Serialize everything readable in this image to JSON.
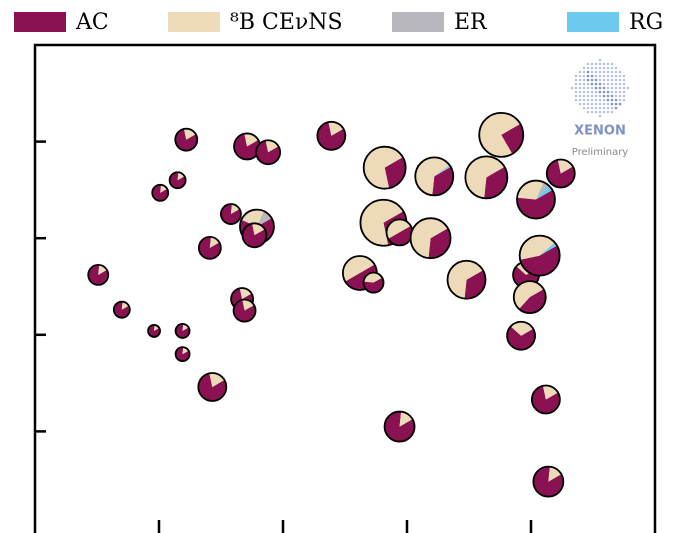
{
  "chart_data": {
    "type": "pie-scatter",
    "series": [
      {
        "name": "AC",
        "color": "#8a1252"
      },
      {
        "name": "⁸B CEνNS",
        "color": "#ecdab8"
      },
      {
        "name": "ER",
        "color": "#b9b7be"
      },
      {
        "name": "RG",
        "color": "#6ccaf0"
      }
    ],
    "logo_title": "XENON",
    "logo_subtitle": "Preliminary",
    "xlim": [
      0,
      5
    ],
    "ylim": [
      0,
      5
    ],
    "xticks": [
      1,
      2,
      3,
      4
    ],
    "yticks": [
      1,
      2,
      3,
      4
    ],
    "points": [
      {
        "x": 1.22,
        "y": 4.02,
        "size": 11,
        "fractions": [
          0.8,
          0.2,
          0,
          0
        ]
      },
      {
        "x": 1.71,
        "y": 3.95,
        "size": 13,
        "fractions": [
          0.8,
          0.2,
          0,
          0
        ]
      },
      {
        "x": 1.88,
        "y": 3.89,
        "size": 12,
        "fractions": [
          0.8,
          0.2,
          0,
          0
        ]
      },
      {
        "x": 2.39,
        "y": 4.06,
        "size": 14,
        "fractions": [
          0.8,
          0.2,
          0,
          0
        ]
      },
      {
        "x": 2.82,
        "y": 3.73,
        "size": 21,
        "fractions": [
          0.3,
          0.7,
          0,
          0
        ]
      },
      {
        "x": 3.22,
        "y": 3.64,
        "size": 19,
        "fractions": [
          0.35,
          0.63,
          0.01,
          0.01
        ]
      },
      {
        "x": 3.64,
        "y": 3.63,
        "size": 21,
        "fractions": [
          0.35,
          0.65,
          0,
          0
        ]
      },
      {
        "x": 3.76,
        "y": 4.07,
        "size": 22,
        "fractions": [
          0.25,
          0.75,
          0,
          0
        ]
      },
      {
        "x": 4.24,
        "y": 3.67,
        "size": 14,
        "fractions": [
          0.8,
          0.2,
          0,
          0
        ]
      },
      {
        "x": 4.04,
        "y": 3.4,
        "size": 19,
        "fractions": [
          0.6,
          0.3,
          0.05,
          0.05
        ]
      },
      {
        "x": 1.01,
        "y": 3.47,
        "size": 8,
        "fractions": [
          0.85,
          0.15,
          0,
          0
        ]
      },
      {
        "x": 1.15,
        "y": 3.6,
        "size": 8,
        "fractions": [
          0.85,
          0.15,
          0,
          0
        ]
      },
      {
        "x": 1.58,
        "y": 3.25,
        "size": 10,
        "fractions": [
          0.85,
          0.15,
          0,
          0
        ]
      },
      {
        "x": 1.79,
        "y": 3.12,
        "size": 17,
        "fractions": [
          0.65,
          0.25,
          0.1,
          0
        ]
      },
      {
        "x": 1.77,
        "y": 3.03,
        "size": 12,
        "fractions": [
          0.8,
          0.2,
          0,
          0
        ]
      },
      {
        "x": 2.81,
        "y": 3.16,
        "size": 23,
        "fractions": [
          0.3,
          0.7,
          0,
          0
        ]
      },
      {
        "x": 2.94,
        "y": 3.06,
        "size": 13,
        "fractions": [
          0.5,
          0.5,
          0,
          0
        ]
      },
      {
        "x": 3.19,
        "y": 3.0,
        "size": 20,
        "fractions": [
          0.35,
          0.65,
          0,
          0
        ]
      },
      {
        "x": 1.41,
        "y": 2.9,
        "size": 11,
        "fractions": [
          0.85,
          0.15,
          0,
          0
        ]
      },
      {
        "x": 0.51,
        "y": 2.62,
        "size": 10,
        "fractions": [
          0.85,
          0.15,
          0,
          0
        ]
      },
      {
        "x": 2.62,
        "y": 2.64,
        "size": 17,
        "fractions": [
          0.5,
          0.5,
          0,
          0
        ]
      },
      {
        "x": 2.73,
        "y": 2.54,
        "size": 10,
        "fractions": [
          0.6,
          0.4,
          0,
          0
        ]
      },
      {
        "x": 3.48,
        "y": 2.57,
        "size": 19,
        "fractions": [
          0.35,
          0.65,
          0,
          0
        ]
      },
      {
        "x": 3.96,
        "y": 2.62,
        "size": 13,
        "fractions": [
          0.7,
          0.3,
          0,
          0
        ]
      },
      {
        "x": 4.07,
        "y": 2.82,
        "size": 20,
        "fractions": [
          0.55,
          0.42,
          0,
          0.03
        ]
      },
      {
        "x": 3.99,
        "y": 2.39,
        "size": 16,
        "fractions": [
          0.45,
          0.55,
          0,
          0
        ]
      },
      {
        "x": 1.67,
        "y": 2.37,
        "size": 11,
        "fractions": [
          0.8,
          0.2,
          0,
          0
        ]
      },
      {
        "x": 1.69,
        "y": 2.25,
        "size": 11,
        "fractions": [
          0.8,
          0.2,
          0,
          0
        ]
      },
      {
        "x": 0.7,
        "y": 2.26,
        "size": 8,
        "fractions": [
          0.85,
          0.15,
          0,
          0
        ]
      },
      {
        "x": 0.96,
        "y": 2.04,
        "size": 6,
        "fractions": [
          0.85,
          0.15,
          0,
          0
        ]
      },
      {
        "x": 1.19,
        "y": 2.04,
        "size": 7,
        "fractions": [
          0.85,
          0.15,
          0,
          0
        ]
      },
      {
        "x": 1.19,
        "y": 1.8,
        "size": 7,
        "fractions": [
          0.85,
          0.15,
          0,
          0
        ]
      },
      {
        "x": 3.92,
        "y": 1.99,
        "size": 14,
        "fractions": [
          0.7,
          0.3,
          0,
          0
        ]
      },
      {
        "x": 1.43,
        "y": 1.46,
        "size": 14,
        "fractions": [
          0.8,
          0.2,
          0,
          0
        ]
      },
      {
        "x": 4.12,
        "y": 1.33,
        "size": 14,
        "fractions": [
          0.8,
          0.2,
          0,
          0
        ]
      },
      {
        "x": 2.94,
        "y": 1.05,
        "size": 15,
        "fractions": [
          0.85,
          0.15,
          0,
          0
        ]
      },
      {
        "x": 4.14,
        "y": 0.48,
        "size": 15,
        "fractions": [
          0.85,
          0.15,
          0,
          0
        ]
      }
    ]
  }
}
